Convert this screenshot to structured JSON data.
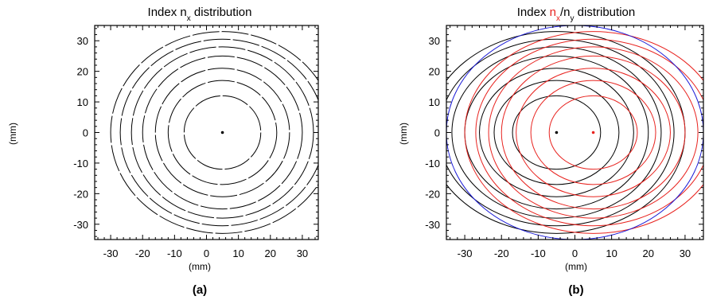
{
  "chart_data": [
    {
      "type": "contour",
      "title_prefix": "Index ",
      "title_n": "n",
      "title_sub_x": "x",
      "title_suffix": " distribution",
      "xlabel": "(mm)",
      "ylabel": "(mm)",
      "panel_label": "(a)",
      "xlim": [
        -35,
        35
      ],
      "ylim": [
        -35,
        35
      ],
      "xticks": [
        -30,
        -20,
        -10,
        0,
        10,
        20,
        30
      ],
      "yticks": [
        30,
        20,
        10,
        0,
        -10,
        -20,
        -30
      ],
      "series": [
        {
          "color": "#000000",
          "center": [
            5,
            0
          ],
          "semi_axes": [
            [
              12,
              12
            ],
            [
              17,
              17
            ],
            [
              21,
              21
            ],
            [
              25,
              25
            ],
            [
              28.5,
              28
            ],
            [
              32,
              30.5
            ],
            [
              35,
              33
            ]
          ],
          "dashed": true
        }
      ]
    },
    {
      "type": "contour",
      "title_prefix": "Index ",
      "title_n": "n",
      "title_sub_x": "x",
      "title_mid": "/n",
      "title_sub_y": "y",
      "title_suffix": " distribution",
      "xlabel": "(mm)",
      "ylabel": "(mm)",
      "panel_label": "(b)",
      "xlim": [
        -35,
        35
      ],
      "ylim": [
        -35,
        35
      ],
      "xticks": [
        -30,
        -20,
        -10,
        0,
        10,
        20,
        30
      ],
      "yticks": [
        30,
        20,
        10,
        0,
        -10,
        -20,
        -30
      ],
      "series": [
        {
          "color": "#000000",
          "center": [
            -5,
            0
          ],
          "semi_axes": [
            [
              12,
              12
            ],
            [
              17,
              17
            ],
            [
              21,
              21
            ],
            [
              25,
              25
            ],
            [
              28.5,
              28
            ],
            [
              32,
              30.5
            ],
            [
              35,
              33
            ]
          ],
          "dashed": false
        },
        {
          "color": "#e8231f",
          "center": [
            5,
            0
          ],
          "semi_axes": [
            [
              12,
              12
            ],
            [
              17,
              17
            ],
            [
              21,
              21
            ],
            [
              25,
              25
            ],
            [
              28.5,
              28
            ],
            [
              32,
              30.5
            ],
            [
              35,
              33
            ]
          ],
          "dashed": false
        },
        {
          "color": "#1a1ad6",
          "center": [
            0,
            0
          ],
          "semi_axes": [
            [
              35,
              35
            ]
          ],
          "dashed": false
        }
      ],
      "colors": {
        "n_x": "#e8231f",
        "boundary": "#1a1ad6"
      }
    }
  ]
}
